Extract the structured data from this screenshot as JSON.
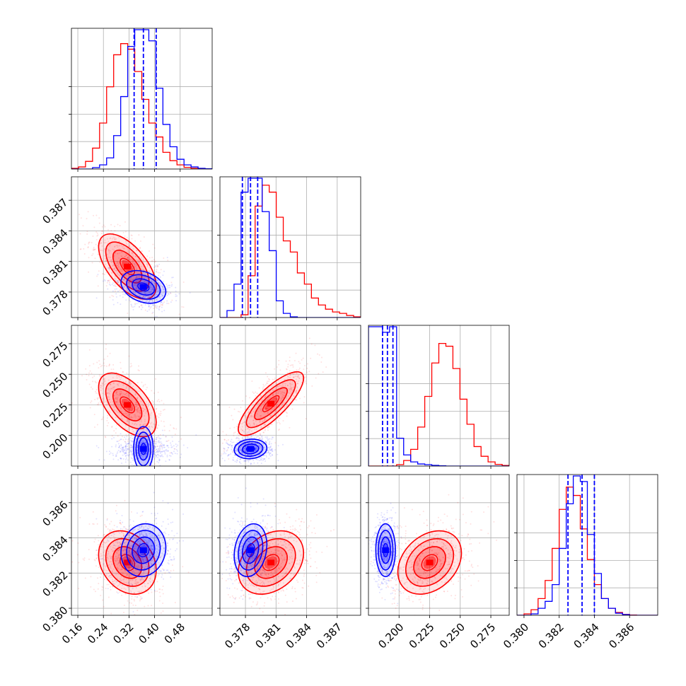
{
  "chart_data": {
    "type": "corner",
    "colors": {
      "series_a": "#ff0000",
      "series_b": "#0000ff"
    },
    "grid": true,
    "params": [
      {
        "xlim": [
          0.14,
          0.58
        ],
        "xticks": [
          0.16,
          0.24,
          0.32,
          0.4,
          0.48
        ],
        "xtick_labels": [
          "0.16",
          "0.24",
          "0.32",
          "0.40",
          "0.48"
        ],
        "red_hist": [
          0.5,
          1.5,
          5.5,
          15,
          33,
          59,
          82,
          90,
          86,
          70,
          50,
          33,
          23,
          12,
          6,
          3,
          1.2,
          0.5,
          0.2,
          0.1
        ],
        "blue_hist": [
          0,
          0,
          0,
          1,
          3,
          8,
          24,
          52,
          88,
          100,
          100,
          92,
          58,
          32,
          16,
          7,
          3,
          1.5,
          0.5,
          0.2
        ],
        "quantiles": [
          0.336,
          0.365,
          0.405
        ],
        "red_center": 0.315,
        "red_sigma": 0.045,
        "blue_center": 0.365,
        "blue_sigma": 0.035
      },
      {
        "xlim": [
          0.3755,
          0.3893
        ],
        "xticks": [
          0.378,
          0.381,
          0.384,
          0.387
        ],
        "xtick_labels": [
          "0.378",
          "0.381",
          "0.384",
          "0.387"
        ],
        "ylim": [
          0.3755,
          0.3893
        ],
        "yticks": [
          0.378,
          0.381,
          0.384,
          0.387
        ],
        "ytick_labels": [
          "0.378",
          "0.381",
          "0.384",
          "0.387"
        ],
        "red_hist": [
          0,
          0,
          0,
          2,
          30,
          80,
          95,
          90,
          72,
          55,
          47,
          32,
          24,
          14,
          9,
          6,
          4,
          3,
          1.5,
          0.5
        ],
        "blue_hist": [
          0,
          5,
          24,
          90,
          100,
          100,
          76,
          48,
          12,
          3,
          0.5,
          0,
          0,
          0,
          0,
          0,
          0,
          0,
          0,
          0
        ],
        "quantiles": [
          0.3777,
          0.3785,
          0.3792
        ],
        "red_center": 0.3795,
        "red_sigma": 0.0016,
        "blue_center": 0.3785,
        "blue_sigma": 0.0008
      },
      {
        "xlim": [
          0.175,
          0.29
        ],
        "xticks": [
          0.2,
          0.225,
          0.25,
          0.275
        ],
        "xtick_labels": [
          "0.200",
          "0.225",
          "0.250",
          "0.275"
        ],
        "ylim": [
          0.175,
          0.29
        ],
        "yticks": [
          0.2,
          0.225,
          0.25,
          0.275
        ],
        "ytick_labels": [
          "0.200",
          "0.225",
          "0.250",
          "0.275"
        ],
        "red_hist": [
          0,
          0,
          0,
          0,
          1,
          4,
          12,
          28,
          50,
          74,
          88,
          86,
          70,
          48,
          30,
          14,
          7,
          3,
          1.2,
          0.4
        ],
        "blue_hist": [
          100,
          100,
          96,
          100,
          20,
          8,
          3,
          1.5,
          1,
          0.5,
          0.2,
          0,
          0,
          0,
          0,
          0,
          0,
          0,
          0,
          0
        ],
        "quantiles": [
          0.1865,
          0.1905,
          0.195
        ],
        "red_center": 0.225,
        "red_sigma": 0.013,
        "blue_center": 0.189,
        "blue_sigma": 0.004
      },
      {
        "xlim": [
          0.3796,
          0.3876
        ],
        "xticks": [
          0.38,
          0.382,
          0.384,
          0.386
        ],
        "xtick_labels": [
          "0.380",
          "0.382",
          "0.384",
          "0.386"
        ],
        "ylim": [
          0.3796,
          0.3876
        ],
        "yticks": [
          0.38,
          0.382,
          0.384,
          0.386
        ],
        "ytick_labels": [
          "0.380",
          "0.382",
          "0.384",
          "0.386"
        ],
        "red_hist": [
          0,
          1,
          4,
          12,
          25,
          48,
          76,
          92,
          86,
          62,
          40,
          22,
          12,
          5,
          2,
          0.6,
          0.2,
          0,
          0,
          0
        ],
        "blue_hist": [
          0,
          0,
          1,
          5,
          10,
          22,
          48,
          80,
          100,
          96,
          58,
          30,
          12,
          5,
          1.5,
          0.5,
          0,
          0,
          0,
          0
        ],
        "quantiles": [
          0.3825,
          0.3833,
          0.384
        ],
        "red_center": 0.3826,
        "red_sigma": 0.0009,
        "blue_center": 0.3833,
        "blue_sigma": 0.00075
      }
    ],
    "pairs": [
      {
        "row": 1,
        "col": 0,
        "red": {
          "mx": 0.315,
          "my": 0.3805,
          "sx": 0.045,
          "sy": 0.0016,
          "rho": -0.6
        },
        "blue": {
          "mx": 0.365,
          "my": 0.3785,
          "sx": 0.035,
          "sy": 0.0008,
          "rho": -0.3
        }
      },
      {
        "row": 2,
        "col": 0,
        "red": {
          "mx": 0.315,
          "my": 0.225,
          "sx": 0.045,
          "sy": 0.013,
          "rho": -0.55
        },
        "blue": {
          "mx": 0.365,
          "my": 0.189,
          "sx": 0.035,
          "sy": 0.004,
          "rho": 0.0
        }
      },
      {
        "row": 2,
        "col": 1,
        "red": {
          "mx": 0.3805,
          "my": 0.226,
          "sx": 0.0016,
          "sy": 0.013,
          "rho": 0.8
        },
        "blue": {
          "mx": 0.3785,
          "my": 0.189,
          "sx": 0.0008,
          "sy": 0.004,
          "rho": 0.1
        }
      },
      {
        "row": 3,
        "col": 0,
        "red": {
          "mx": 0.315,
          "my": 0.3826,
          "sx": 0.045,
          "sy": 0.0009,
          "rho": -0.25
        },
        "blue": {
          "mx": 0.365,
          "my": 0.3833,
          "sx": 0.035,
          "sy": 0.00075,
          "rho": 0.1
        }
      },
      {
        "row": 3,
        "col": 1,
        "red": {
          "mx": 0.3805,
          "my": 0.3826,
          "sx": 0.0016,
          "sy": 0.0009,
          "rho": 0.3
        },
        "blue": {
          "mx": 0.3785,
          "my": 0.3833,
          "sx": 0.0008,
          "sy": 0.00075,
          "rho": 0.2
        }
      },
      {
        "row": 3,
        "col": 2,
        "red": {
          "mx": 0.225,
          "my": 0.3826,
          "sx": 0.013,
          "sy": 0.0009,
          "rho": 0.3
        },
        "blue": {
          "mx": 0.189,
          "my": 0.3833,
          "sx": 0.004,
          "sy": 0.00075,
          "rho": 0.0
        }
      }
    ]
  }
}
